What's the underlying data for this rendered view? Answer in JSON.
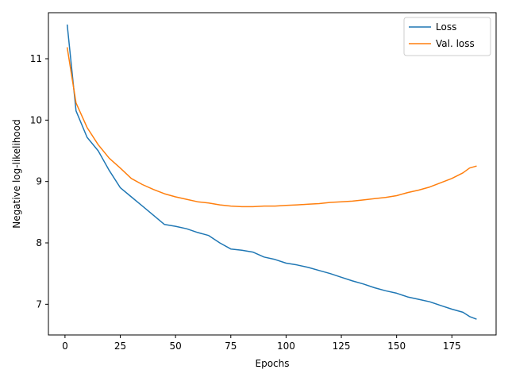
{
  "chart_data": {
    "type": "line",
    "title": "",
    "xlabel": "Epochs",
    "ylabel": "Negative log-likelihood",
    "xlim": [
      -7.5,
      195
    ],
    "ylim": [
      6.5,
      11.75
    ],
    "xticks": [
      0,
      25,
      50,
      75,
      100,
      125,
      150,
      175
    ],
    "yticks": [
      7,
      8,
      9,
      10,
      11
    ],
    "grid": false,
    "legend": "top-right",
    "x": [
      1,
      5,
      10,
      15,
      20,
      25,
      30,
      35,
      40,
      45,
      50,
      55,
      60,
      65,
      70,
      75,
      80,
      85,
      90,
      95,
      100,
      105,
      110,
      115,
      120,
      125,
      130,
      135,
      140,
      145,
      150,
      155,
      160,
      165,
      170,
      175,
      180,
      183,
      186
    ],
    "series": [
      {
        "name": "Loss",
        "color": "#1f77b4",
        "values": [
          11.55,
          10.15,
          9.72,
          9.5,
          9.18,
          8.9,
          8.75,
          8.6,
          8.45,
          8.3,
          8.27,
          8.23,
          8.17,
          8.12,
          8.0,
          7.9,
          7.88,
          7.85,
          7.77,
          7.73,
          7.67,
          7.64,
          7.6,
          7.55,
          7.5,
          7.44,
          7.38,
          7.33,
          7.27,
          7.22,
          7.18,
          7.12,
          7.08,
          7.04,
          6.98,
          6.92,
          6.87,
          6.8,
          6.76
        ]
      },
      {
        "name": "Val. loss",
        "color": "#ff7f0e",
        "values": [
          11.18,
          10.28,
          9.88,
          9.6,
          9.38,
          9.22,
          9.05,
          8.95,
          8.87,
          8.8,
          8.75,
          8.71,
          8.67,
          8.65,
          8.62,
          8.6,
          8.59,
          8.59,
          8.6,
          8.6,
          8.61,
          8.62,
          8.63,
          8.64,
          8.66,
          8.67,
          8.68,
          8.7,
          8.72,
          8.74,
          8.77,
          8.82,
          8.86,
          8.91,
          8.98,
          9.05,
          9.14,
          9.22,
          9.25
        ]
      }
    ]
  }
}
